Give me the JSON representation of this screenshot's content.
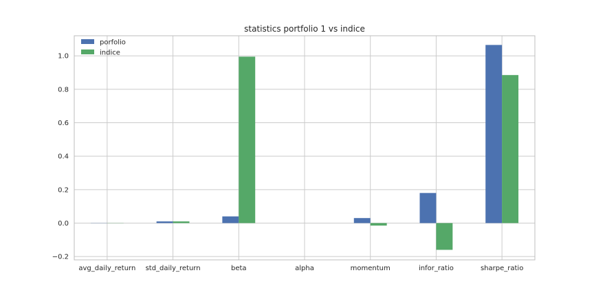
{
  "chart_data": {
    "type": "bar",
    "title": "statistics portfolio 1 vs indice",
    "xlabel": "",
    "ylabel": "",
    "categories": [
      "avg_daily_return",
      "std_daily_return",
      "beta",
      "alpha",
      "momentum",
      "infor_ratio",
      "sharpe_ratio"
    ],
    "series": [
      {
        "name": "porfolio",
        "color": "#4C72B0",
        "values": [
          0.001,
          0.01,
          0.04,
          0.0,
          0.03,
          0.18,
          1.065
        ]
      },
      {
        "name": "indice",
        "color": "#55A868",
        "values": [
          0.001,
          0.01,
          0.995,
          0.0,
          -0.015,
          -0.16,
          0.885
        ]
      }
    ],
    "ylim": [
      -0.22,
      1.12
    ],
    "yticks": [
      -0.2,
      0.0,
      0.2,
      0.4,
      0.6,
      0.8,
      1.0
    ],
    "ytick_labels": [
      "−0.2",
      "0.0",
      "0.2",
      "0.4",
      "0.6",
      "0.8",
      "1.0"
    ],
    "grid": true,
    "legend_position": "top-left"
  }
}
